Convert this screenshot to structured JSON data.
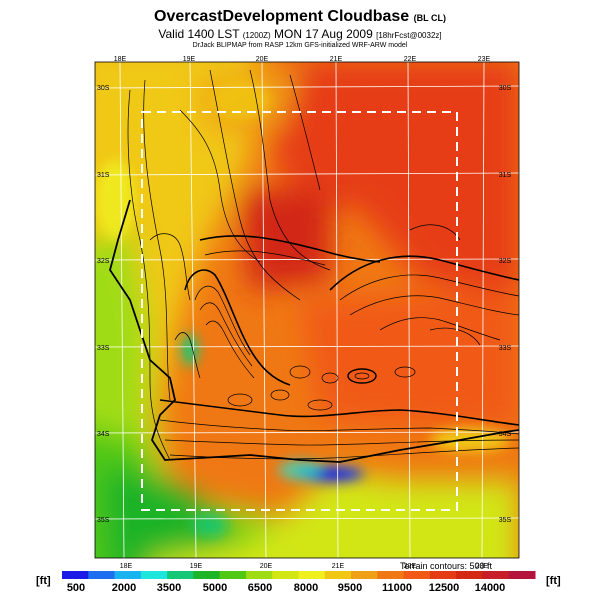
{
  "header": {
    "title": "OvercastDevelopment Cloudbase",
    "title_tag": "(BL CL)",
    "valid_prefix": "Valid 1400 LST",
    "valid_code": "(1200Z)",
    "valid_date": "MON 17 Aug 2009",
    "valid_fcst": "[18hrFcst@0032z]",
    "credit": "DrJack BLIPMAP from RASP 12km GFS-initialized WRF-ARW model"
  },
  "axes": {
    "lon_labels": [
      "18E",
      "19E",
      "20E",
      "21E",
      "22E",
      "23E"
    ],
    "lat_labels": [
      "30S",
      "31S",
      "32S",
      "33S",
      "34S",
      "35S"
    ]
  },
  "legend": {
    "unit_left": "[ft]",
    "unit_right": "[ft]",
    "labels": [
      "500",
      "2000",
      "3500",
      "5000",
      "6500",
      "8000",
      "9500",
      "11000",
      "12500",
      "14000"
    ],
    "colors": [
      "#1a1ae6",
      "#1e6ef0",
      "#19b4f0",
      "#1ee6dc",
      "#14c878",
      "#1eb428",
      "#50c814",
      "#a0dc14",
      "#d2e614",
      "#f0f01e",
      "#f0c814",
      "#f0a014",
      "#f07814",
      "#f05a14",
      "#e63c14",
      "#d22814",
      "#c81e28",
      "#b4143c"
    ]
  },
  "terrain_note": "Terrain contours: 500 ft"
}
